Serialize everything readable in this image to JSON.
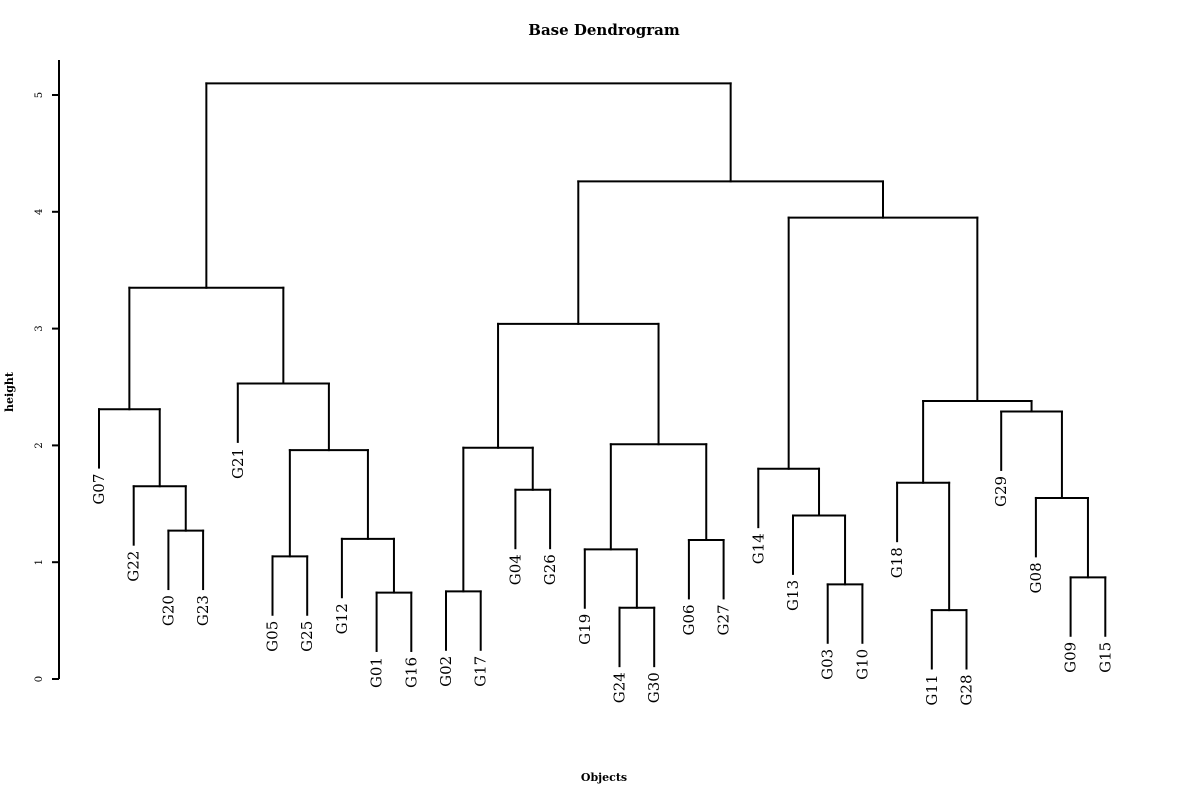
{
  "chart_data": {
    "type": "dendrogram",
    "title": "Base Dendrogram",
    "xlabel": "Objects",
    "ylabel": "height",
    "ylim": [
      0,
      5.3
    ],
    "yticks": [
      0,
      1,
      2,
      3,
      4,
      5
    ],
    "leaf_order": [
      "G07",
      "G22",
      "G20",
      "G23",
      "G21",
      "G05",
      "G25",
      "G12",
      "G01",
      "G16",
      "G02",
      "G17",
      "G04",
      "G26",
      "G19",
      "G24",
      "G30",
      "G06",
      "G27",
      "G14",
      "G13",
      "G03",
      "G10",
      "G18",
      "G11",
      "G28",
      "G29",
      "G08",
      "G09",
      "G15"
    ],
    "tree": {
      "h": 5.1,
      "children": [
        {
          "h": 3.35,
          "children": [
            {
              "h": 2.31,
              "children": [
                {
                  "leaf": "G07"
                },
                {
                  "h": 1.65,
                  "children": [
                    {
                      "leaf": "G22"
                    },
                    {
                      "h": 1.27,
                      "children": [
                        {
                          "leaf": "G20"
                        },
                        {
                          "leaf": "G23"
                        }
                      ]
                    }
                  ]
                }
              ]
            },
            {
              "h": 2.53,
              "children": [
                {
                  "leaf": "G21"
                },
                {
                  "h": 1.96,
                  "children": [
                    {
                      "h": 1.05,
                      "children": [
                        {
                          "leaf": "G05"
                        },
                        {
                          "leaf": "G25"
                        }
                      ]
                    },
                    {
                      "h": 1.2,
                      "children": [
                        {
                          "leaf": "G12"
                        },
                        {
                          "h": 0.74,
                          "children": [
                            {
                              "leaf": "G01"
                            },
                            {
                              "leaf": "G16"
                            }
                          ]
                        }
                      ]
                    }
                  ]
                }
              ]
            }
          ]
        },
        {
          "h": 4.26,
          "children": [
            {
              "h": 3.04,
              "children": [
                {
                  "h": 1.98,
                  "children": [
                    {
                      "h": 0.75,
                      "children": [
                        {
                          "leaf": "G02"
                        },
                        {
                          "leaf": "G17"
                        }
                      ]
                    },
                    {
                      "h": 1.62,
                      "children": [
                        {
                          "leaf": "G04"
                        },
                        {
                          "leaf": "G26"
                        }
                      ]
                    }
                  ]
                },
                {
                  "h": 2.01,
                  "children": [
                    {
                      "h": 1.11,
                      "children": [
                        {
                          "leaf": "G19"
                        },
                        {
                          "h": 0.61,
                          "children": [
                            {
                              "leaf": "G24"
                            },
                            {
                              "leaf": "G30"
                            }
                          ]
                        }
                      ]
                    },
                    {
                      "h": 1.19,
                      "children": [
                        {
                          "leaf": "G06"
                        },
                        {
                          "leaf": "G27"
                        }
                      ]
                    }
                  ]
                }
              ]
            },
            {
              "h": 3.95,
              "children": [
                {
                  "h": 1.8,
                  "children": [
                    {
                      "leaf": "G14"
                    },
                    {
                      "h": 1.4,
                      "children": [
                        {
                          "leaf": "G13"
                        },
                        {
                          "h": 0.81,
                          "children": [
                            {
                              "leaf": "G03"
                            },
                            {
                              "leaf": "G10"
                            }
                          ]
                        }
                      ]
                    }
                  ]
                },
                {
                  "h": 2.38,
                  "children": [
                    {
                      "h": 1.68,
                      "children": [
                        {
                          "leaf": "G18"
                        },
                        {
                          "h": 0.59,
                          "children": [
                            {
                              "leaf": "G11"
                            },
                            {
                              "leaf": "G28"
                            }
                          ]
                        }
                      ]
                    },
                    {
                      "h": 2.29,
                      "children": [
                        {
                          "leaf": "G29"
                        },
                        {
                          "h": 1.55,
                          "children": [
                            {
                              "leaf": "G08"
                            },
                            {
                              "h": 0.87,
                              "children": [
                                {
                                  "leaf": "G09"
                                },
                                {
                                  "leaf": "G15"
                                }
                              ]
                            }
                          ]
                        }
                      ]
                    }
                  ]
                }
              ]
            }
          ]
        }
      ]
    }
  }
}
